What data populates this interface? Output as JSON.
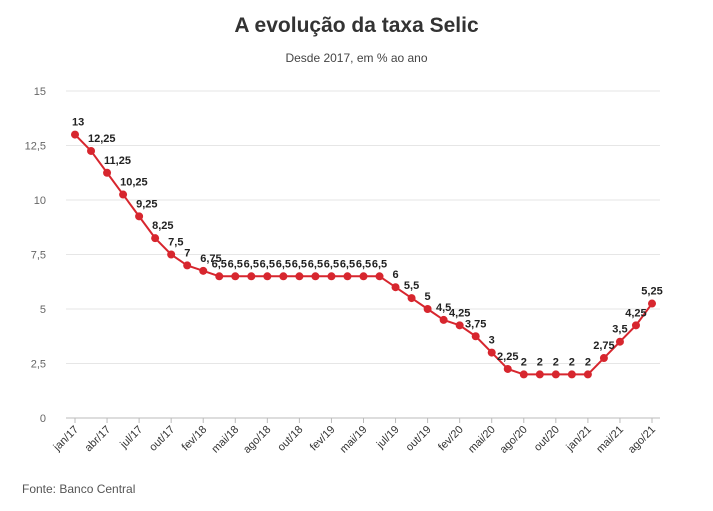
{
  "chart_data": {
    "type": "line",
    "title": "A evolução da taxa Selic",
    "subtitle": "Desde 2017, em % ao ano",
    "source": "Fonte: Banco Central",
    "ylim": [
      0,
      15
    ],
    "yticks": [
      "0",
      "2,5",
      "5",
      "7,5",
      "10",
      "12,5",
      "15"
    ],
    "ytick_values": [
      0,
      2.5,
      5,
      7.5,
      10,
      12.5,
      15
    ],
    "xtick_labels": [
      "jan/17",
      "abr/17",
      "jul/17",
      "out/17",
      "fev/18",
      "mai/18",
      "ago/18",
      "out/18",
      "fev/19",
      "mai/19",
      "jul/19",
      "out/19",
      "fev/20",
      "mai/20",
      "ago/20",
      "out/20",
      "jan/21",
      "mai/21",
      "ago/21"
    ],
    "xtick_indices": [
      0,
      2,
      4,
      6,
      8,
      10,
      12,
      14,
      16,
      18,
      20,
      22,
      24,
      26,
      28,
      30,
      32,
      34,
      36
    ],
    "grid": true,
    "line_color": "#d7262e",
    "series": [
      {
        "values": [
          13,
          12.25,
          11.25,
          10.25,
          9.25,
          8.25,
          7.5,
          7,
          6.75,
          6.5,
          6.5,
          6.5,
          6.5,
          6.5,
          6.5,
          6.5,
          6.5,
          6.5,
          6.5,
          6.5,
          6,
          5.5,
          5,
          4.5,
          4.25,
          3.75,
          3,
          2.25,
          2,
          2,
          2,
          2,
          2,
          2.75,
          3.5,
          4.25,
          5.25
        ],
        "labels": [
          "13",
          "12,25",
          "11,25",
          "10,25",
          "9,25",
          "8,25",
          "7,5",
          "7",
          "6,75",
          "6,5",
          "6,5",
          "6,5",
          "6,5",
          "6,5",
          "6,5",
          "6,5",
          "6,5",
          "6,5",
          "6,5",
          "6,5",
          "6",
          "5,5",
          "5",
          "4,5",
          "4,25",
          "3,75",
          "3",
          "2,25",
          "2",
          "2",
          "2",
          "2",
          "2",
          "2,75",
          "3,5",
          "4,25",
          "5,25"
        ]
      }
    ]
  }
}
